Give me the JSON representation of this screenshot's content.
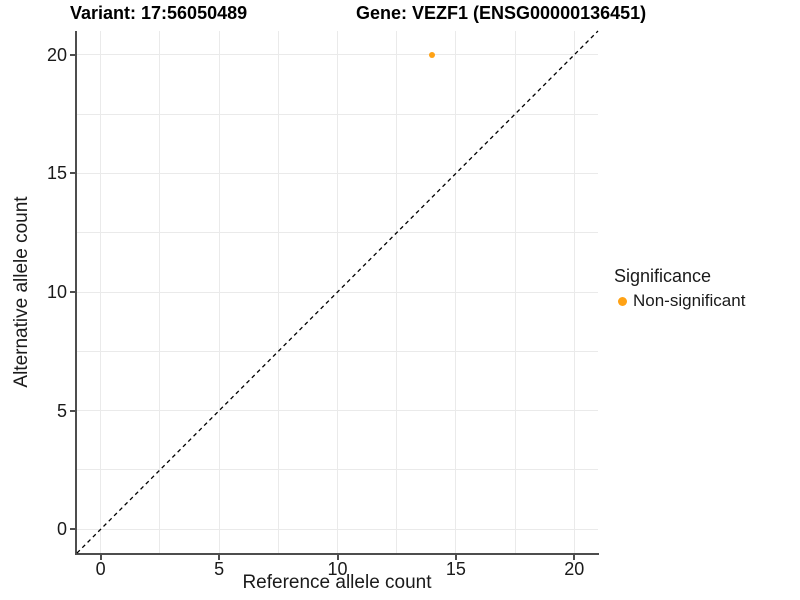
{
  "chart_data": {
    "type": "scatter",
    "titles": {
      "left": "Variant: 17:56050489",
      "right": "Gene: VEZF1 (ENSG00000136451)"
    },
    "xlabel": "Reference allele count",
    "ylabel": "Alternative allele count",
    "xlim": [
      -1,
      21
    ],
    "ylim": [
      -1,
      21
    ],
    "x_ticks": [
      0,
      5,
      10,
      15,
      20
    ],
    "y_ticks": [
      0,
      5,
      10,
      15,
      20
    ],
    "grid_values": [
      0,
      2.5,
      5,
      7.5,
      10,
      12.5,
      15,
      17.5,
      20
    ],
    "grid": true,
    "series": [
      {
        "name": "Non-significant",
        "color": "#FFA215",
        "points": [
          {
            "x": 14,
            "y": 20
          }
        ]
      }
    ],
    "reference_line": {
      "type": "identity",
      "style": "dashed",
      "color": "#000000",
      "from": -1,
      "to": 21
    },
    "legend": {
      "title": "Significance",
      "position": "right",
      "entries": [
        {
          "label": "Non-significant",
          "color": "#FFA215"
        }
      ]
    }
  },
  "colors": {
    "background": "#FFFFFF",
    "grid": "#EAEAEA",
    "axis_line": "#4D4D4D",
    "text": "#1A1A1A",
    "title_text": "#000000"
  }
}
